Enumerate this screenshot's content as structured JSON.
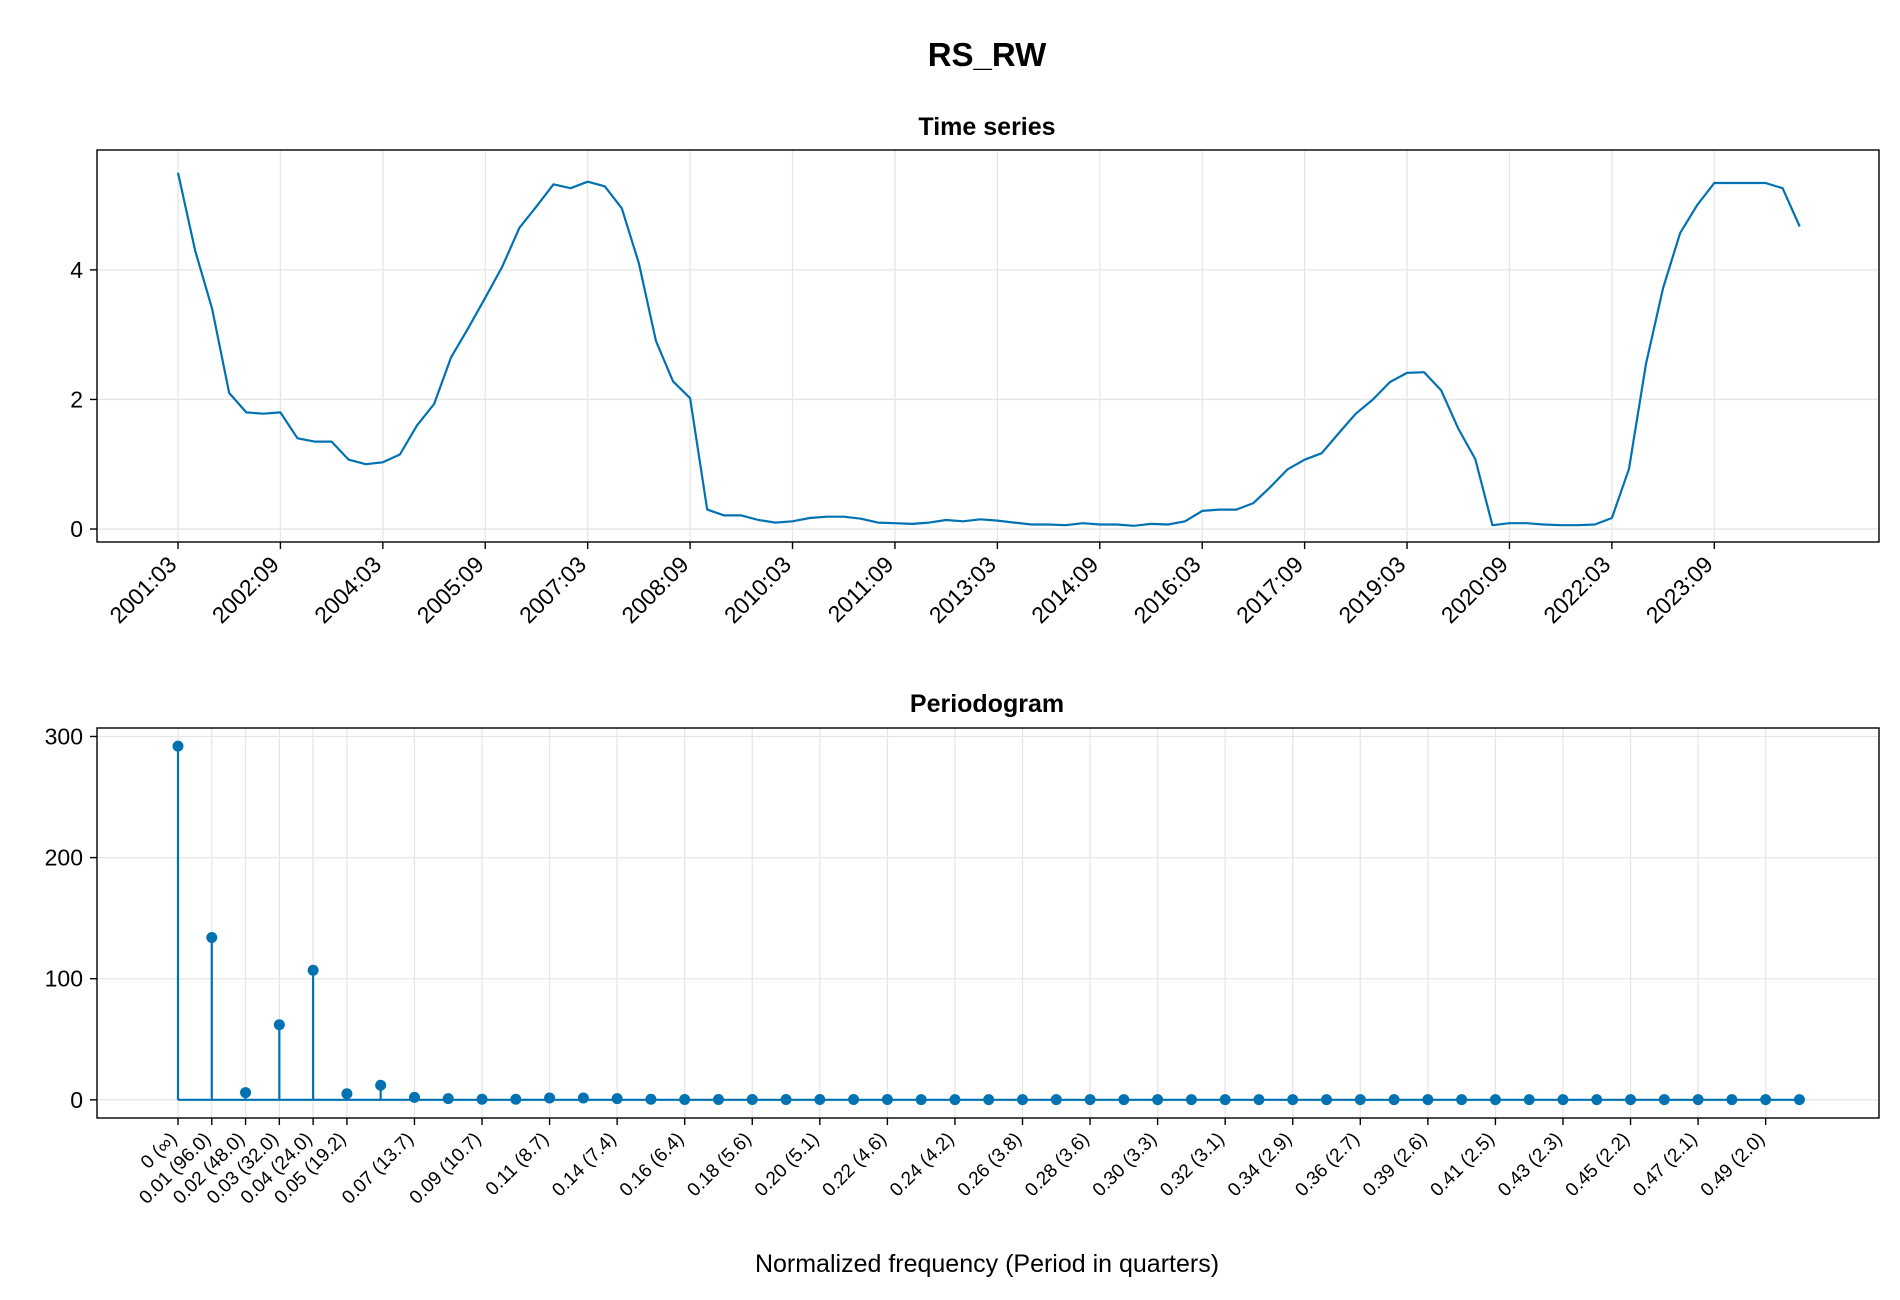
{
  "title": "RS_RW",
  "colors": {
    "series": "#0072b2",
    "grid": "#e6e6e6"
  },
  "chart_data": [
    {
      "type": "line",
      "title": "Time series",
      "xlabel": "",
      "ylabel": "",
      "ylim": [
        -0.2,
        5.85
      ],
      "yticks": [
        0,
        2,
        4
      ],
      "xticks": [
        "2001:03",
        "2002:09",
        "2004:03",
        "2005:09",
        "2007:03",
        "2008:09",
        "2010:03",
        "2011:09",
        "2013:03",
        "2014:09",
        "2016:03",
        "2017:09",
        "2019:03",
        "2020:09",
        "2022:03",
        "2023:09"
      ],
      "grid": true,
      "x_start": "2001:03",
      "frequency": "quarterly",
      "values": [
        5.5,
        4.3,
        3.4,
        2.1,
        1.8,
        1.78,
        1.8,
        1.4,
        1.35,
        1.35,
        1.07,
        1.0,
        1.03,
        1.15,
        1.6,
        1.93,
        2.65,
        3.1,
        3.57,
        4.05,
        4.65,
        4.98,
        5.32,
        5.26,
        5.36,
        5.29,
        4.95,
        4.1,
        2.9,
        2.28,
        2.02,
        0.3,
        0.21,
        0.21,
        0.14,
        0.1,
        0.12,
        0.17,
        0.19,
        0.19,
        0.16,
        0.1,
        0.09,
        0.08,
        0.1,
        0.14,
        0.12,
        0.15,
        0.13,
        0.1,
        0.07,
        0.07,
        0.06,
        0.09,
        0.07,
        0.07,
        0.05,
        0.08,
        0.07,
        0.12,
        0.28,
        0.3,
        0.3,
        0.4,
        0.65,
        0.92,
        1.07,
        1.17,
        1.48,
        1.78,
        2.0,
        2.27,
        2.41,
        2.42,
        2.14,
        1.55,
        1.08,
        0.06,
        0.09,
        0.09,
        0.07,
        0.06,
        0.06,
        0.07,
        0.17,
        0.93,
        2.55,
        3.72,
        4.57,
        5.0,
        5.34,
        5.34,
        5.34,
        5.34,
        5.26,
        4.67
      ]
    },
    {
      "type": "stem",
      "title": "Periodogram",
      "xlabel": "Normalized frequency (Period in quarters)",
      "ylabel": "",
      "ylim": [
        -15,
        307
      ],
      "yticks": [
        0,
        100,
        200,
        300
      ],
      "grid": true,
      "xtick_labels": [
        "0 (∞)",
        "0.01 (96.0)",
        "0.02 (48.0)",
        "0.03 (32.0)",
        "0.04 (24.0)",
        "0.05 (19.2)",
        "0.07 (13.7)",
        "0.09 (10.7)",
        "0.11 (8.7)",
        "0.14 (7.4)",
        "0.16 (6.4)",
        "0.18 (5.6)",
        "0.20 (5.1)",
        "0.22 (4.6)",
        "0.24 (4.2)",
        "0.26 (3.8)",
        "0.28 (3.6)",
        "0.30 (3.3)",
        "0.32 (3.1)",
        "0.34 (2.9)",
        "0.36 (2.7)",
        "0.39 (2.6)",
        "0.41 (2.5)",
        "0.43 (2.3)",
        "0.45 (2.2)",
        "0.47 (2.1)",
        "0.49 (2.0)"
      ],
      "values": [
        292,
        134,
        6,
        62,
        107,
        5,
        12,
        2,
        1,
        0.5,
        0.5,
        1.5,
        1.5,
        1,
        0.5,
        0.3,
        0.3,
        0.3,
        0.3,
        0.3,
        0.3,
        0.3,
        0.2,
        0.2,
        0.2,
        0.2,
        0.2,
        0.2,
        0.2,
        0.2,
        0.2,
        0.2,
        0.2,
        0.2,
        0.2,
        0.2,
        0.2,
        0.2,
        0.2,
        0.2,
        0.2,
        0.2,
        0.2,
        0.2,
        0.2,
        0.2,
        0.2,
        0.2,
        0.2
      ]
    }
  ]
}
